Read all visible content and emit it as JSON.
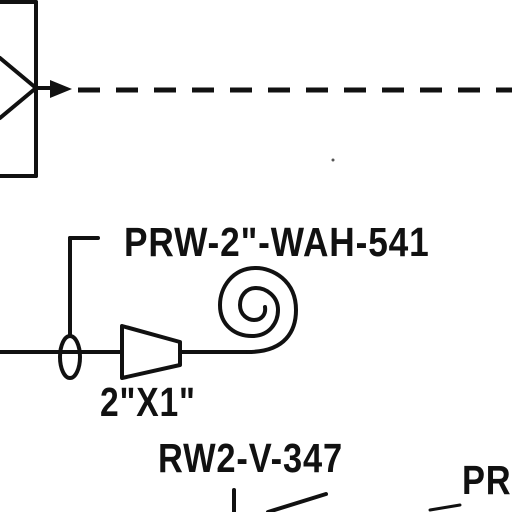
{
  "diagram": {
    "labels": {
      "line_number": "PRW-2\"-WAH-541",
      "reducer_size": "2\"X1\"",
      "valve_tag": "RW2-V-347",
      "partial_tag": "PR"
    },
    "symbols": [
      "instrument-box-icon",
      "signal-dashed-line",
      "process-pipe",
      "flow-element-icon",
      "concentric-reducer-icon",
      "spiral-coil-icon",
      "valve-icon"
    ]
  }
}
